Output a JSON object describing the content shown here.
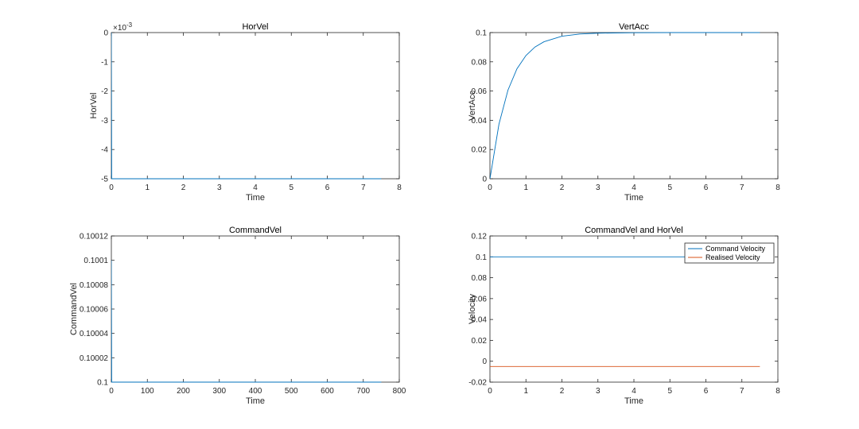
{
  "chart_data": [
    {
      "type": "line",
      "title": "HorVel",
      "xlabel": "Time",
      "ylabel": "HorVel",
      "xlim": [
        0,
        8
      ],
      "ylim": [
        -0.005,
        0
      ],
      "xticks": [
        0,
        1,
        2,
        3,
        4,
        5,
        6,
        7,
        8
      ],
      "xtick_labels": [
        "0",
        "1",
        "2",
        "3",
        "4",
        "5",
        "6",
        "7",
        "8"
      ],
      "yticks": [
        -0.005,
        -0.004,
        -0.003,
        -0.002,
        -0.001,
        0
      ],
      "ytick_labels": [
        "-5",
        "-4",
        "-3",
        "-2",
        "-1",
        "0"
      ],
      "y_multiplier": {
        "base": "×10",
        "exp": "-3"
      },
      "grid": false,
      "series": [
        {
          "color": "#0072BD",
          "x": [
            0,
            0.01,
            0.02,
            7.5
          ],
          "y": [
            0,
            -0.005,
            -0.005,
            -0.005
          ]
        }
      ]
    },
    {
      "type": "line",
      "title": "VertAcc",
      "xlabel": "Time",
      "ylabel": "VertAcc",
      "xlim": [
        0,
        8
      ],
      "ylim": [
        0,
        0.1
      ],
      "xticks": [
        0,
        1,
        2,
        3,
        4,
        5,
        6,
        7,
        8
      ],
      "xtick_labels": [
        "0",
        "1",
        "2",
        "3",
        "4",
        "5",
        "6",
        "7",
        "8"
      ],
      "yticks": [
        0,
        0.02,
        0.04,
        0.06,
        0.08,
        0.1
      ],
      "ytick_labels": [
        "0",
        "0.02",
        "0.04",
        "0.06",
        "0.08",
        "0.1"
      ],
      "grid": false,
      "series": [
        {
          "color": "#0072BD",
          "x": [
            0,
            0.25,
            0.5,
            0.75,
            1,
            1.25,
            1.5,
            2,
            2.5,
            3,
            4,
            5,
            6,
            7.5
          ],
          "y": [
            0,
            0.0373,
            0.0606,
            0.0752,
            0.0843,
            0.0901,
            0.0937,
            0.0975,
            0.099,
            0.0996,
            0.0999,
            0.1,
            0.1,
            0.1
          ]
        }
      ]
    },
    {
      "type": "line",
      "title": "CommandVel",
      "xlabel": "Time",
      "ylabel": "CommandVel",
      "xlim": [
        0,
        800
      ],
      "ylim": [
        0.1,
        0.10012
      ],
      "xticks": [
        0,
        100,
        200,
        300,
        400,
        500,
        600,
        700,
        800
      ],
      "xtick_labels": [
        "0",
        "100",
        "200",
        "300",
        "400",
        "500",
        "600",
        "700",
        "800"
      ],
      "yticks": [
        0.1,
        0.10002,
        0.10004,
        0.10006,
        0.10008,
        0.1001,
        0.10012
      ],
      "ytick_labels": [
        "0.1",
        "0.10002",
        "0.10004",
        "0.10006",
        "0.10008",
        "0.1001",
        "0.10012"
      ],
      "grid": false,
      "series": [
        {
          "color": "#0072BD",
          "x": [
            0,
            1,
            2,
            750
          ],
          "y": [
            0.1001,
            0.1,
            0.1,
            0.1
          ]
        }
      ]
    },
    {
      "type": "line",
      "title": "CommandVel and HorVel",
      "xlabel": "Time",
      "ylabel": "Velocity",
      "xlim": [
        0,
        8
      ],
      "ylim": [
        -0.02,
        0.12
      ],
      "xticks": [
        0,
        1,
        2,
        3,
        4,
        5,
        6,
        7,
        8
      ],
      "xtick_labels": [
        "0",
        "1",
        "2",
        "3",
        "4",
        "5",
        "6",
        "7",
        "8"
      ],
      "yticks": [
        -0.02,
        0,
        0.02,
        0.04,
        0.06,
        0.08,
        0.1,
        0.12
      ],
      "ytick_labels": [
        "-0.02",
        "0",
        "0.02",
        "0.04",
        "0.06",
        "0.08",
        "0.1",
        "0.12"
      ],
      "grid": false,
      "legend": "top-right",
      "series": [
        {
          "name": "Command Velocity",
          "color": "#0072BD",
          "x": [
            0,
            7.5
          ],
          "y": [
            0.1,
            0.1
          ]
        },
        {
          "name": "Realised Velocity",
          "color": "#D95319",
          "x": [
            0,
            7.5
          ],
          "y": [
            -0.005,
            -0.005
          ]
        }
      ]
    }
  ]
}
